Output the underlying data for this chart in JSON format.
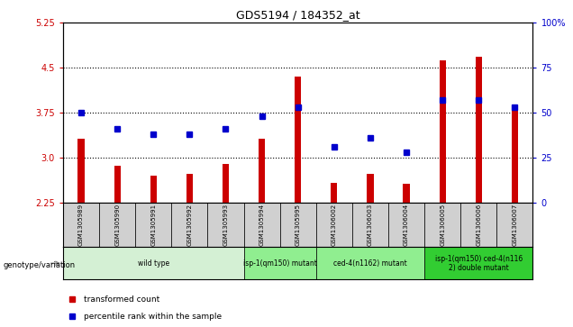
{
  "title": "GDS5194 / 184352_at",
  "samples": [
    "GSM1305989",
    "GSM1305990",
    "GSM1305991",
    "GSM1305992",
    "GSM1305993",
    "GSM1305994",
    "GSM1305995",
    "GSM1306002",
    "GSM1306003",
    "GSM1306004",
    "GSM1306005",
    "GSM1306006",
    "GSM1306007"
  ],
  "transformed_count": [
    3.32,
    2.86,
    2.7,
    2.73,
    2.9,
    3.32,
    4.36,
    2.58,
    2.73,
    2.56,
    4.63,
    4.68,
    3.85
  ],
  "percentile_rank": [
    50,
    41,
    38,
    38,
    41,
    48,
    53,
    31,
    36,
    28,
    57,
    57,
    53
  ],
  "ylim_left": [
    2.25,
    5.25
  ],
  "ylim_right": [
    0,
    100
  ],
  "yticks_left": [
    2.25,
    3.0,
    3.75,
    4.5,
    5.25
  ],
  "yticks_right": [
    0,
    25,
    50,
    75,
    100
  ],
  "hlines": [
    3.0,
    3.75,
    4.5
  ],
  "bar_color": "#cc0000",
  "dot_color": "#0000cc",
  "groups": [
    {
      "label": "wild type",
      "start": 0,
      "end": 4,
      "color": "#d4f0d4"
    },
    {
      "label": "isp-1(qm150) mutant",
      "start": 5,
      "end": 6,
      "color": "#90ee90"
    },
    {
      "label": "ced-4(n1162) mutant",
      "start": 7,
      "end": 9,
      "color": "#90ee90"
    },
    {
      "label": "isp-1(qm150) ced-4(n116\n2) double mutant",
      "start": 10,
      "end": 12,
      "color": "#32cd32"
    }
  ],
  "legend_items": [
    {
      "label": "transformed count",
      "color": "#cc0000"
    },
    {
      "label": "percentile rank within the sample",
      "color": "#0000cc"
    }
  ],
  "tick_color_left": "#cc0000",
  "tick_color_right": "#0000cc",
  "bg_color": "#ffffff",
  "genotype_label": "genotype/variation"
}
